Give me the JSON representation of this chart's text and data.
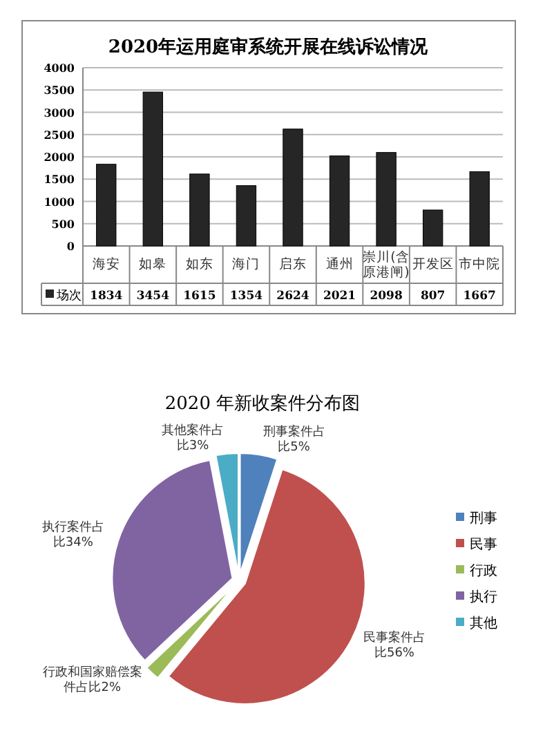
{
  "chart_data": [
    {
      "type": "bar",
      "title": "2020年运用庭审系统开展在线诉讼情况",
      "categories": [
        "海安",
        "如皋",
        "如东",
        "海门",
        "启东",
        "通州",
        "崇川(含原港闸)",
        "开发区",
        "市中院"
      ],
      "series": [
        {
          "name": "场次",
          "color": "#262626",
          "values": [
            1834,
            3454,
            1615,
            1354,
            2624,
            2021,
            2098,
            807,
            1667
          ]
        }
      ],
      "ylim": [
        0,
        4000
      ],
      "yticks": [
        0,
        500,
        1000,
        1500,
        2000,
        2500,
        3000,
        3500,
        4000
      ],
      "grid": "y",
      "data_labels": true,
      "legend": "bottom left"
    },
    {
      "type": "pie",
      "title": "2020 年新收案件分布图",
      "categories": [
        "刑事",
        "民事",
        "行政",
        "执行",
        "其他"
      ],
      "values": [
        5,
        56,
        2,
        34,
        3
      ],
      "colors": [
        "#4f81bd",
        "#c0504d",
        "#9bbb59",
        "#8064a2",
        "#4bacc6"
      ],
      "value_labels": [
        "刑事案件占比5%",
        "民事案件占比56%",
        "行政和国家赔偿案件占比2%",
        "执行案件占比34%",
        "其他案件占比3%"
      ],
      "legend": "right"
    }
  ]
}
